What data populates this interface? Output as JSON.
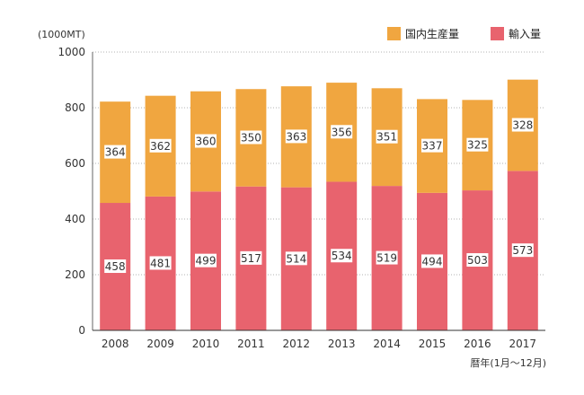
{
  "chart_data": {
    "type": "bar",
    "stacked": true,
    "ylabel": "(1000MT)",
    "xlabel": "暦年(1月～12月)",
    "ylim": [
      0,
      1000
    ],
    "yticks": [
      "0",
      "200",
      "400",
      "600",
      "800",
      "1000"
    ],
    "ytick_values": [
      0,
      200,
      400,
      600,
      800,
      1000
    ],
    "grid": true,
    "legend_position": "top-right",
    "categories": [
      "2008",
      "2009",
      "2010",
      "2011",
      "2012",
      "2013",
      "2014",
      "2015",
      "2016",
      "2017"
    ],
    "series": [
      {
        "name": "輸入量",
        "color": "#e8636e",
        "values": [
          458,
          481,
          499,
          517,
          514,
          534,
          519,
          494,
          503,
          573
        ]
      },
      {
        "name": "国内生産量",
        "color": "#f0a640",
        "values": [
          364,
          362,
          360,
          350,
          363,
          356,
          351,
          337,
          325,
          328
        ]
      }
    ],
    "legend_order": [
      1,
      0
    ]
  }
}
